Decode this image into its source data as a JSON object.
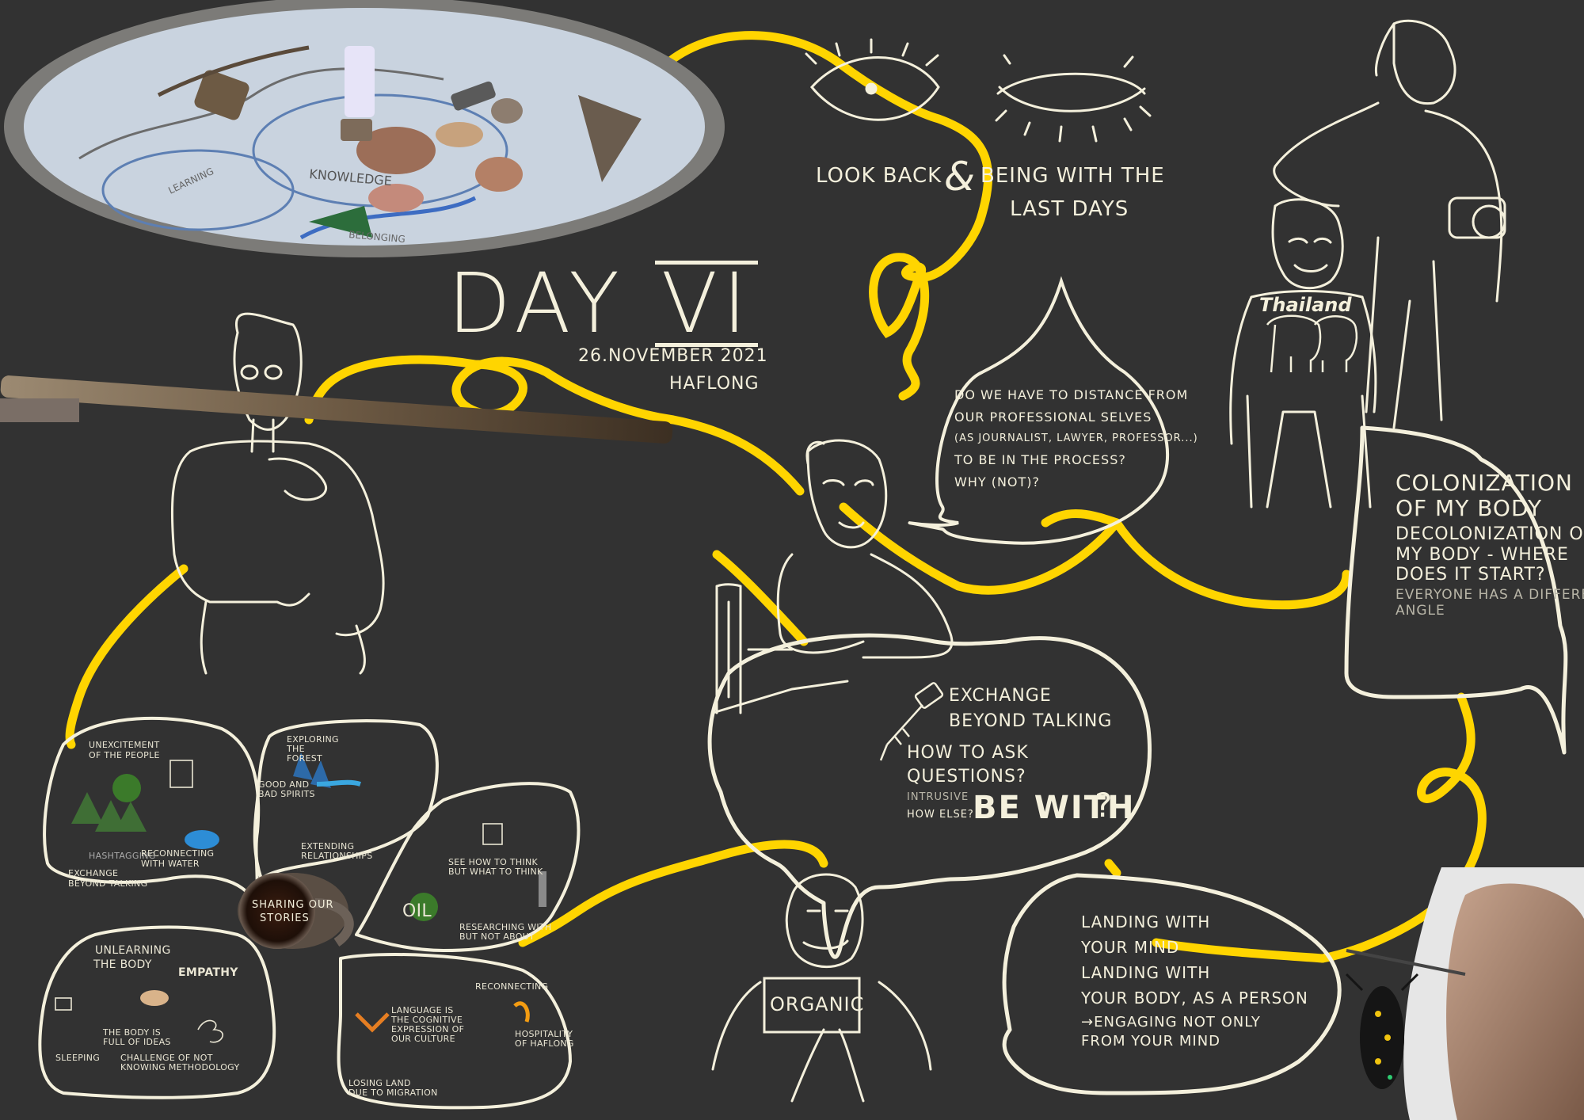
{
  "header": {
    "title_word": "DAY",
    "title_numeral": "VI",
    "date": "26.NOVEMBER 2021",
    "place": "HAFLONG"
  },
  "top_note": {
    "part1": "LOOK BACK",
    "ampersand": "&",
    "part2_line1": "BEING WITH THE",
    "part2_line2": "LAST DAYS"
  },
  "speech_question": [
    "DO WE HAVE TO DISTANCE FROM",
    "OUR PROFESSIONAL SELVES",
    "(AS JOURNALIST, LAWYER, PROFESSOR...)",
    "TO BE IN THE PROCESS?",
    "WHY (NOT)?"
  ],
  "colonization_bubble": {
    "line1": "COLONIZATION",
    "line2": "OF MY BODY",
    "line3": "DECOLONIZATION OF",
    "line4": "MY BODY - WHERE",
    "line5": "DOES IT START?",
    "line6": "EVERYONE HAS A DIFFERENT",
    "line7": "ANGLE"
  },
  "exchange_bubble": {
    "line1": "EXCHANGE",
    "line2": "BEYOND TALKING",
    "line3": "HOW TO ASK",
    "line4": "QUESTIONS?",
    "line5": "INTRUSIVE",
    "line6": "HOW ELSE?",
    "be_with": "BE WITH",
    "qmark": "?"
  },
  "landing_bubble": [
    "LANDING WITH",
    "YOUR MIND",
    "LANDING WITH",
    "YOUR BODY, AS A PERSON",
    "→ENGAGING NOT ONLY",
    "FROM YOUR MIND"
  ],
  "organic_sign": "ORGANIC",
  "tshirt_text": "Thailand",
  "cup_label_line1": "SHARING OUR",
  "cup_label_line2": "STORIES",
  "map_words": {
    "knowledge": "KNOWLEDGE",
    "learning": "LEARNING",
    "belonging": "BELONGING"
  },
  "petals": {
    "p1": {
      "top": [
        "UNEXCITEMENT",
        "OF THE PEOPLE"
      ],
      "bottom1": "HASHTAGGING",
      "bottom2": [
        "RECONNECTING",
        "WITH WATER"
      ],
      "bottom3": [
        "EXCHANGE",
        "BEYOND TALKING"
      ]
    },
    "p2": {
      "a": [
        "EXPLORING",
        "THE",
        "FOREST"
      ],
      "b": [
        "GOOD AND",
        "BAD SPIRITS"
      ],
      "c": [
        "EXTENDING",
        "RELATIONSHIPS"
      ]
    },
    "p3": {
      "a": [
        "SEE HOW TO THINK",
        "BUT WHAT TO THINK"
      ],
      "b": [
        "OIL"
      ],
      "c": [
        "RESEARCHING WITH",
        "BUT NOT ABOUT"
      ]
    },
    "p4": {
      "title": [
        "UNLEARNING",
        "THE BODY"
      ],
      "empathy": "EMPATHY",
      "a": [
        "THE BODY IS",
        "FULL OF IDEAS"
      ],
      "b": "SLEEPING",
      "c": [
        "CHALLENGE OF NOT",
        "KNOWING METHODOLOGY"
      ]
    },
    "p5": {
      "a": [
        "LANGUAGE IS",
        "THE COGNITIVE",
        "EXPRESSION OF",
        "OUR CULTURE"
      ],
      "b": [
        "HOSPITALITY",
        "OF HAFLONG"
      ],
      "c": [
        "LOSING LAND",
        "DUE TO MIGRATION"
      ],
      "d": "RECONNECTING"
    }
  },
  "colors": {
    "background": "#323232",
    "yellow_line": "#ffd500",
    "chalk": "#f4f0dc",
    "map_cloth": "#c9d3df"
  }
}
